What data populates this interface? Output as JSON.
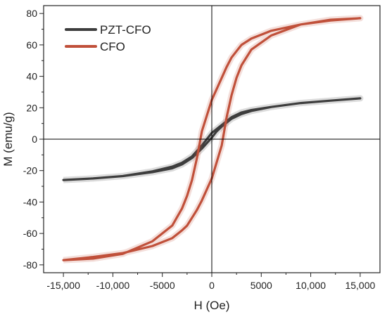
{
  "chart_data": {
    "type": "line",
    "xlabel": "H (Oe)",
    "ylabel": "M (emu/g)",
    "xlim": [
      -17000,
      17000
    ],
    "ylim": [
      -85,
      85
    ],
    "x_ticks": [
      -15000,
      -10000,
      -5000,
      0,
      5000,
      10000,
      15000
    ],
    "x_tick_labels": [
      "-15,000",
      "-10,000",
      "-5000",
      "0",
      "5000",
      "10,000",
      "15,000"
    ],
    "y_ticks": [
      -80,
      -60,
      -40,
      -20,
      0,
      20,
      40,
      60,
      80
    ],
    "y_tick_labels": [
      "-80",
      "-60",
      "-40",
      "-20",
      "0",
      "20",
      "40",
      "60",
      "80"
    ],
    "grid": false,
    "legend_position": "top-left",
    "series": [
      {
        "name": "PZT-CFO",
        "color": "#3d3d3d",
        "x": [
          -15000,
          -12000,
          -9000,
          -6000,
          -4000,
          -3000,
          -2000,
          -1000,
          0,
          500,
          1000,
          2000,
          3000,
          4000,
          6000,
          9000,
          12000,
          15000,
          15000,
          12000,
          9000,
          6000,
          4000,
          3000,
          2000,
          1000,
          0,
          -500,
          -1000,
          -2000,
          -3000,
          -4000,
          -6000,
          -9000,
          -12000,
          -15000
        ],
        "y": [
          -26,
          -25,
          -23.5,
          -21,
          -18.5,
          -16,
          -12,
          -6,
          1,
          5,
          8,
          13,
          16,
          18,
          20.5,
          23,
          24.5,
          26,
          26,
          24.5,
          23,
          20.5,
          18.5,
          17,
          14,
          9,
          4,
          0,
          -4,
          -11,
          -15,
          -17.5,
          -20.5,
          -23.5,
          -25,
          -26
        ]
      },
      {
        "name": "CFO",
        "color": "#c0503a",
        "x": [
          -15000,
          -12000,
          -9000,
          -6000,
          -4000,
          -3000,
          -2500,
          -2000,
          -1500,
          -1000,
          0,
          1000,
          1500,
          2000,
          2500,
          3000,
          4000,
          6000,
          9000,
          12000,
          15000,
          15000,
          12000,
          9000,
          6000,
          4000,
          3000,
          2500,
          2000,
          1500,
          1000,
          0,
          -1000,
          -1500,
          -2000,
          -2500,
          -3000,
          -4000,
          -6000,
          -9000,
          -12000,
          -15000
        ],
        "y": [
          -77,
          -76,
          -73,
          -65,
          -55,
          -44,
          -36,
          -26,
          -12,
          5,
          25,
          39,
          46,
          52,
          56,
          60,
          64,
          69,
          73,
          75.5,
          77,
          77,
          76,
          73,
          66,
          57,
          47,
          39,
          28,
          14,
          -4,
          -25,
          -39,
          -45,
          -50,
          -55,
          -58,
          -63,
          -68,
          -72.5,
          -75,
          -77
        ]
      }
    ]
  }
}
